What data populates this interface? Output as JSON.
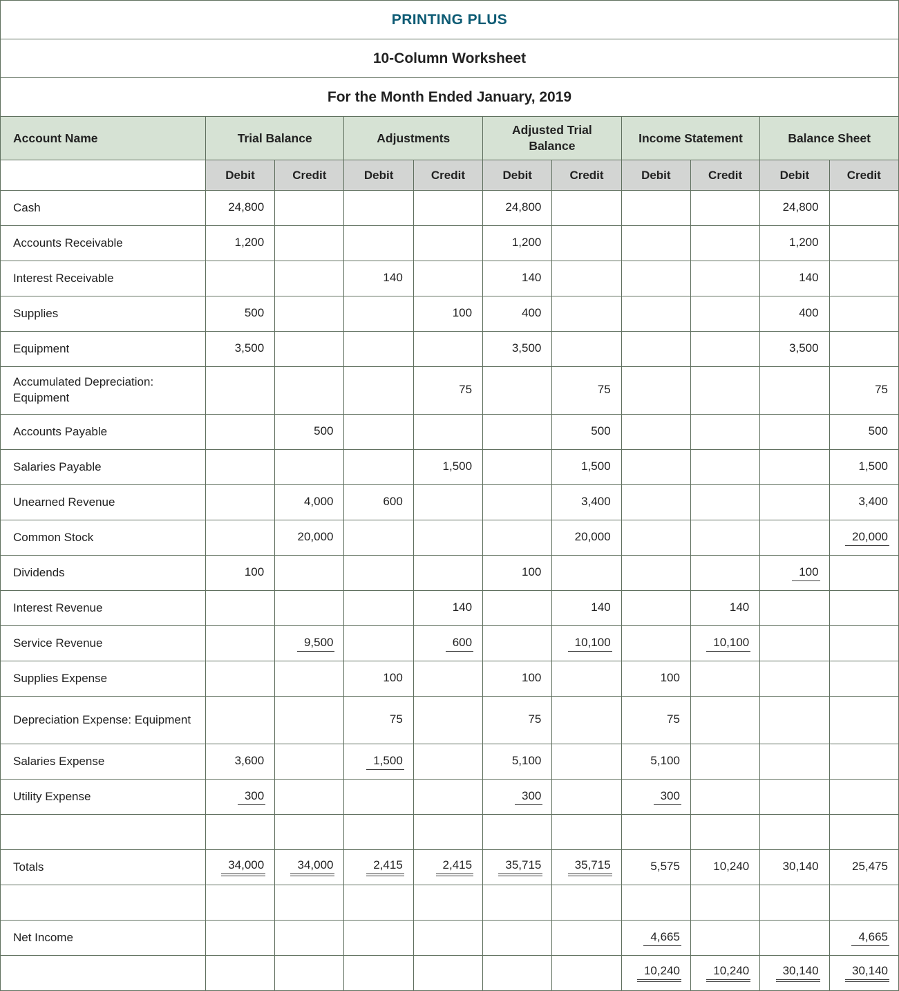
{
  "titles": {
    "company": "PRINTING PLUS",
    "worksheet": "10-Column Worksheet",
    "period": "For the Month Ended January, 2019"
  },
  "header": {
    "account_name": "Account Name",
    "groups": [
      "Trial Balance",
      "Adjustments",
      "Adjusted Trial Balance",
      "Income Statement",
      "Balance Sheet"
    ],
    "debit": "Debit",
    "credit": "Credit"
  },
  "colors": {
    "title_teal": "#0d5b74",
    "group_header_bg": "#d6e2d4",
    "subheader_bg": "#d3d5d3",
    "border": "#60705f"
  },
  "rows": [
    {
      "name": "Cash",
      "cells": [
        {
          "v": "24,800"
        },
        null,
        null,
        null,
        {
          "v": "24,800"
        },
        null,
        null,
        null,
        {
          "v": "24,800"
        },
        null
      ]
    },
    {
      "name": "Accounts Receivable",
      "cells": [
        {
          "v": "1,200"
        },
        null,
        null,
        null,
        {
          "v": "1,200"
        },
        null,
        null,
        null,
        {
          "v": "1,200"
        },
        null
      ]
    },
    {
      "name": "Interest Receivable",
      "cells": [
        null,
        null,
        {
          "v": "140"
        },
        null,
        {
          "v": "140"
        },
        null,
        null,
        null,
        {
          "v": "140"
        },
        null
      ]
    },
    {
      "name": "Supplies",
      "cells": [
        {
          "v": "500"
        },
        null,
        null,
        {
          "v": "100"
        },
        {
          "v": "400"
        },
        null,
        null,
        null,
        {
          "v": "400"
        },
        null
      ]
    },
    {
      "name": "Equipment",
      "cells": [
        {
          "v": "3,500"
        },
        null,
        null,
        null,
        {
          "v": "3,500"
        },
        null,
        null,
        null,
        {
          "v": "3,500"
        },
        null
      ]
    },
    {
      "name": "Accumulated Depreciation: Equipment",
      "tall": true,
      "cells": [
        null,
        null,
        null,
        {
          "v": "75"
        },
        null,
        {
          "v": "75"
        },
        null,
        null,
        null,
        {
          "v": "75"
        }
      ]
    },
    {
      "name": "Accounts Payable",
      "cells": [
        null,
        {
          "v": "500"
        },
        null,
        null,
        null,
        {
          "v": "500"
        },
        null,
        null,
        null,
        {
          "v": "500"
        }
      ]
    },
    {
      "name": "Salaries Payable",
      "cells": [
        null,
        null,
        null,
        {
          "v": "1,500"
        },
        null,
        {
          "v": "1,500"
        },
        null,
        null,
        null,
        {
          "v": "1,500"
        }
      ]
    },
    {
      "name": "Unearned Revenue",
      "cells": [
        null,
        {
          "v": "4,000"
        },
        {
          "v": "600"
        },
        null,
        null,
        {
          "v": "3,400"
        },
        null,
        null,
        null,
        {
          "v": "3,400"
        }
      ]
    },
    {
      "name": "Common Stock",
      "cells": [
        null,
        {
          "v": "20,000"
        },
        null,
        null,
        null,
        {
          "v": "20,000"
        },
        null,
        null,
        null,
        {
          "v": "20,000",
          "u": 1
        }
      ]
    },
    {
      "name": "Dividends",
      "cells": [
        {
          "v": "100"
        },
        null,
        null,
        null,
        {
          "v": "100"
        },
        null,
        null,
        null,
        {
          "v": "100",
          "u": 1
        },
        null
      ]
    },
    {
      "name": "Interest Revenue",
      "cells": [
        null,
        null,
        null,
        {
          "v": "140"
        },
        null,
        {
          "v": "140"
        },
        null,
        {
          "v": "140"
        },
        null,
        null
      ]
    },
    {
      "name": "Service Revenue",
      "cells": [
        null,
        {
          "v": "9,500",
          "u": 1
        },
        null,
        {
          "v": "600",
          "u": 1
        },
        null,
        {
          "v": "10,100",
          "u": 1
        },
        null,
        {
          "v": "10,100",
          "u": 1
        },
        null,
        null
      ]
    },
    {
      "name": "Supplies Expense",
      "cells": [
        null,
        null,
        {
          "v": "100"
        },
        null,
        {
          "v": "100"
        },
        null,
        {
          "v": "100"
        },
        null,
        null,
        null
      ]
    },
    {
      "name": "Depreciation Expense: Equipment",
      "tall": true,
      "cells": [
        null,
        null,
        {
          "v": "75"
        },
        null,
        {
          "v": "75"
        },
        null,
        {
          "v": "75"
        },
        null,
        null,
        null
      ]
    },
    {
      "name": "Salaries Expense",
      "cells": [
        {
          "v": "3,600"
        },
        null,
        {
          "v": "1,500",
          "u": 1
        },
        null,
        {
          "v": "5,100"
        },
        null,
        {
          "v": "5,100"
        },
        null,
        null,
        null
      ]
    },
    {
      "name": "Utility Expense",
      "cells": [
        {
          "v": "300",
          "u": 1
        },
        null,
        null,
        null,
        {
          "v": "300",
          "u": 1
        },
        null,
        {
          "v": "300",
          "u": 1
        },
        null,
        null,
        null
      ]
    },
    {
      "name": "",
      "spacer": true,
      "cells": [
        null,
        null,
        null,
        null,
        null,
        null,
        null,
        null,
        null,
        null
      ]
    },
    {
      "name": "Totals",
      "cells": [
        {
          "v": "34,000",
          "u": 2
        },
        {
          "v": "34,000",
          "u": 2
        },
        {
          "v": "2,415",
          "u": 2
        },
        {
          "v": "2,415",
          "u": 2
        },
        {
          "v": "35,715",
          "u": 2
        },
        {
          "v": "35,715",
          "u": 2
        },
        {
          "v": "5,575"
        },
        {
          "v": "10,240"
        },
        {
          "v": "30,140"
        },
        {
          "v": "25,475"
        }
      ]
    },
    {
      "name": "",
      "spacer": true,
      "cells": [
        null,
        null,
        null,
        null,
        null,
        null,
        null,
        null,
        null,
        null
      ]
    },
    {
      "name": "Net Income",
      "cells": [
        null,
        null,
        null,
        null,
        null,
        null,
        {
          "v": "4,665",
          "u": 1
        },
        null,
        null,
        {
          "v": "4,665",
          "u": 1
        }
      ]
    },
    {
      "name": "",
      "cells": [
        null,
        null,
        null,
        null,
        null,
        null,
        {
          "v": "10,240",
          "u": 2
        },
        {
          "v": "10,240",
          "u": 2
        },
        {
          "v": "30,140",
          "u": 2
        },
        {
          "v": "30,140",
          "u": 2
        }
      ]
    }
  ]
}
